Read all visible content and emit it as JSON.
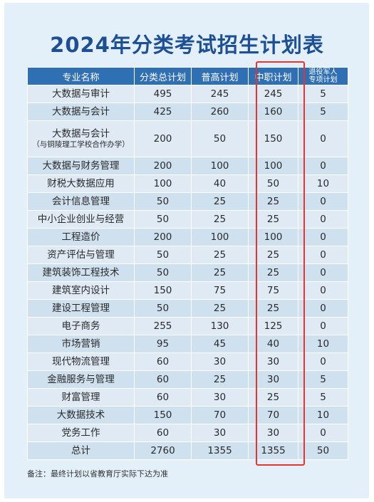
{
  "title": "2024年分类考试招生计划表",
  "headers": [
    "专业名称",
    "分类总计划",
    "普高计划",
    "中职计划",
    "退役军人",
    "专项计划"
  ],
  "rows": [
    {
      "name": "大数据与审计",
      "sub": "",
      "total": "495",
      "pugao": "245",
      "zhongzhi": "245",
      "tuiyi": "5"
    },
    {
      "name": "大数据与会计",
      "sub": "",
      "total": "425",
      "pugao": "260",
      "zhongzhi": "160",
      "tuiyi": "5"
    },
    {
      "name": "大数据与会计",
      "sub": "（与铜陵理工学校合作办学）",
      "total": "200",
      "pugao": "50",
      "zhongzhi": "150",
      "tuiyi": "0"
    },
    {
      "name": "大数据与财务管理",
      "sub": "",
      "total": "200",
      "pugao": "100",
      "zhongzhi": "100",
      "tuiyi": "0"
    },
    {
      "name": "财税大数据应用",
      "sub": "",
      "total": "100",
      "pugao": "40",
      "zhongzhi": "50",
      "tuiyi": "10"
    },
    {
      "name": "会计信息管理",
      "sub": "",
      "total": "50",
      "pugao": "25",
      "zhongzhi": "25",
      "tuiyi": "0"
    },
    {
      "name": "中小企业创业与经营",
      "sub": "",
      "total": "50",
      "pugao": "25",
      "zhongzhi": "25",
      "tuiyi": "0"
    },
    {
      "name": "工程造价",
      "sub": "",
      "total": "200",
      "pugao": "100",
      "zhongzhi": "100",
      "tuiyi": "0"
    },
    {
      "name": "资产评估与管理",
      "sub": "",
      "total": "50",
      "pugao": "25",
      "zhongzhi": "25",
      "tuiyi": "0"
    },
    {
      "name": "建筑装饰工程技术",
      "sub": "",
      "total": "50",
      "pugao": "25",
      "zhongzhi": "25",
      "tuiyi": "0"
    },
    {
      "name": "建筑室内设计",
      "sub": "",
      "total": "150",
      "pugao": "75",
      "zhongzhi": "75",
      "tuiyi": "0"
    },
    {
      "name": "建设工程管理",
      "sub": "",
      "total": "50",
      "pugao": "25",
      "zhongzhi": "25",
      "tuiyi": "0"
    },
    {
      "name": "电子商务",
      "sub": "",
      "total": "255",
      "pugao": "130",
      "zhongzhi": "125",
      "tuiyi": "0"
    },
    {
      "name": "市场营销",
      "sub": "",
      "total": "95",
      "pugao": "45",
      "zhongzhi": "40",
      "tuiyi": "10"
    },
    {
      "name": "现代物流管理",
      "sub": "",
      "total": "60",
      "pugao": "30",
      "zhongzhi": "30",
      "tuiyi": "0"
    },
    {
      "name": "金融服务与管理",
      "sub": "",
      "total": "60",
      "pugao": "25",
      "zhongzhi": "30",
      "tuiyi": "5"
    },
    {
      "name": "财富管理",
      "sub": "",
      "total": "60",
      "pugao": "30",
      "zhongzhi": "25",
      "tuiyi": "5"
    },
    {
      "name": "大数据技术",
      "sub": "",
      "total": "150",
      "pugao": "70",
      "zhongzhi": "70",
      "tuiyi": "10"
    },
    {
      "name": "党务工作",
      "sub": "",
      "total": "60",
      "pugao": "30",
      "zhongzhi": "30",
      "tuiyi": "0"
    },
    {
      "name": "总计",
      "sub": "",
      "total": "2760",
      "pugao": "1355",
      "zhongzhi": "1355",
      "tuiyi": "50"
    }
  ],
  "note": "备注：最终计划以省教育厅实际下达为准",
  "colors": {
    "header": "#2f6fb3",
    "title": "#1d4f95",
    "highlight": "#e8332e",
    "row_a": "#dfeaf5",
    "row_b": "#cfe0ef"
  }
}
